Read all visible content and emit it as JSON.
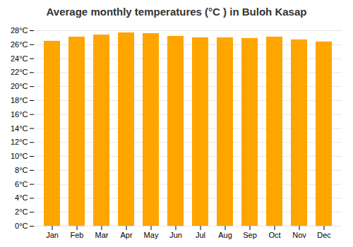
{
  "chart_data": {
    "type": "bar",
    "title": "Average monthly temperatures (°C ) in Buloh Kasap",
    "categories": [
      "Jan",
      "Feb",
      "Mar",
      "Apr",
      "May",
      "Jun",
      "Jul",
      "Aug",
      "Sep",
      "Oct",
      "Nov",
      "Dec"
    ],
    "values": [
      26.5,
      27.1,
      27.4,
      27.7,
      27.6,
      27.2,
      27.0,
      27.0,
      26.9,
      27.1,
      26.7,
      26.4
    ],
    "color": "#FFA500",
    "ylim": [
      0,
      28
    ],
    "yticks": [
      {
        "value": 0,
        "label": "0°C"
      },
      {
        "value": 2,
        "label": "2°C"
      },
      {
        "value": 4,
        "label": "4°C"
      },
      {
        "value": 6,
        "label": "6°C"
      },
      {
        "value": 8,
        "label": "8°C"
      },
      {
        "value": 10,
        "label": "10°C"
      },
      {
        "value": 12,
        "label": "12°C"
      },
      {
        "value": 14,
        "label": "14°C"
      },
      {
        "value": 16,
        "label": "16°C"
      },
      {
        "value": 18,
        "label": "18°C"
      },
      {
        "value": 20,
        "label": "20°C"
      },
      {
        "value": 22,
        "label": "22°C"
      },
      {
        "value": 24,
        "label": "24°C"
      },
      {
        "value": 26,
        "label": "26°C"
      },
      {
        "value": 28,
        "label": "28°C"
      }
    ],
    "grid": true
  }
}
